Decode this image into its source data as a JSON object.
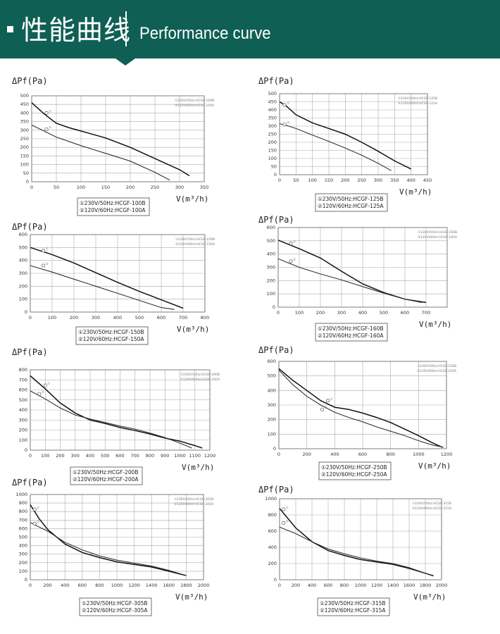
{
  "header": {
    "title_cn": "性能曲线",
    "title_en": "Performance curve"
  },
  "colors": {
    "banner": "#0f5f55",
    "curve": "#111111",
    "grid": "#999999"
  },
  "chart_data": [
    {
      "type": "line",
      "ylabel": "ΔPf(Pa)",
      "xlabel": "V(m³/h)",
      "ylim": [
        0,
        500
      ],
      "xlim": [
        0,
        350
      ],
      "yticks": [
        0,
        50,
        100,
        150,
        200,
        250,
        300,
        350,
        400,
        450,
        500
      ],
      "xticks": [
        0,
        50,
        100,
        150,
        200,
        250,
        300,
        350
      ],
      "grid": true,
      "series": [
        {
          "name": "①230V/50Hz:HCGF-100B",
          "x": [
            0,
            25,
            50,
            75,
            100,
            150,
            200,
            250,
            300,
            320
          ],
          "y": [
            460,
            395,
            340,
            315,
            295,
            255,
            200,
            135,
            70,
            35
          ]
        },
        {
          "name": "②120V/60Hz:HCGF-100A",
          "x": [
            0,
            25,
            50,
            75,
            100,
            150,
            200,
            250,
            280
          ],
          "y": [
            330,
            295,
            260,
            235,
            210,
            165,
            120,
            55,
            10
          ]
        }
      ],
      "markers": [
        {
          "label": "①",
          "x": 30,
          "y": 400
        },
        {
          "label": "②",
          "x": 30,
          "y": 305
        }
      ]
    },
    {
      "type": "line",
      "ylabel": "ΔPf(Pa)",
      "xlabel": "V(m³/h)",
      "ylim": [
        0,
        500
      ],
      "xlim": [
        0,
        450
      ],
      "yticks": [
        0,
        50,
        100,
        150,
        200,
        250,
        300,
        350,
        400,
        450,
        500
      ],
      "xticks": [
        0,
        50,
        100,
        150,
        200,
        250,
        300,
        350,
        400,
        450
      ],
      "grid": true,
      "series": [
        {
          "name": "①230V/50Hz:HCGF-125B",
          "x": [
            0,
            20,
            50,
            100,
            150,
            200,
            250,
            300,
            350,
            400
          ],
          "y": [
            450,
            425,
            370,
            320,
            285,
            250,
            200,
            145,
            85,
            35
          ]
        },
        {
          "name": "②120V/60Hz:HCGF-125A",
          "x": [
            0,
            20,
            50,
            100,
            150,
            200,
            250,
            300,
            340
          ],
          "y": [
            315,
            305,
            285,
            245,
            205,
            165,
            120,
            70,
            25
          ]
        }
      ],
      "markers": [
        {
          "label": "①",
          "x": 15,
          "y": 430
        },
        {
          "label": "②",
          "x": 15,
          "y": 310
        }
      ]
    },
    {
      "type": "line",
      "ylabel": "ΔPf(Pa)",
      "xlabel": "V(m³/h)",
      "ylim": [
        0,
        600
      ],
      "xlim": [
        0,
        800
      ],
      "yticks": [
        0,
        100,
        200,
        300,
        400,
        500,
        600
      ],
      "xticks": [
        0,
        100,
        200,
        300,
        400,
        500,
        600,
        700,
        800
      ],
      "grid": true,
      "series": [
        {
          "name": "①230V/50Hz:HCGF-150B",
          "x": [
            0,
            100,
            200,
            300,
            400,
            500,
            600,
            700
          ],
          "y": [
            500,
            445,
            380,
            305,
            230,
            160,
            95,
            30
          ]
        },
        {
          "name": "②120V/60Hz:HCGF-150A",
          "x": [
            0,
            100,
            200,
            300,
            400,
            500,
            600,
            660
          ],
          "y": [
            360,
            310,
            255,
            200,
            145,
            90,
            35,
            20
          ]
        }
      ],
      "markers": [
        {
          "label": "①",
          "x": 60,
          "y": 475
        },
        {
          "label": "②",
          "x": 60,
          "y": 360
        }
      ]
    },
    {
      "type": "line",
      "ylabel": "ΔPf(Pa)",
      "xlabel": "V(m³/h)",
      "ylim": [
        0,
        600
      ],
      "xlim": [
        0,
        800
      ],
      "yticks": [
        0,
        100,
        200,
        300,
        400,
        500,
        600
      ],
      "xticks": [
        0,
        100,
        200,
        300,
        400,
        500,
        600,
        700
      ],
      "grid": true,
      "series": [
        {
          "name": "①230V/50Hz:HCGF-160B",
          "x": [
            0,
            100,
            200,
            300,
            400,
            500,
            600,
            700
          ],
          "y": [
            505,
            440,
            370,
            270,
            175,
            110,
            60,
            35
          ]
        },
        {
          "name": "②120V/60Hz:HCGF-160A",
          "x": [
            0,
            100,
            200,
            300,
            400,
            500,
            600,
            680
          ],
          "y": [
            365,
            300,
            250,
            205,
            155,
            105,
            60,
            35
          ]
        }
      ],
      "markers": [
        {
          "label": "①",
          "x": 60,
          "y": 480
        },
        {
          "label": "②",
          "x": 60,
          "y": 345
        }
      ]
    },
    {
      "type": "line",
      "ylabel": "ΔPf(Pa)",
      "xlabel": "V(m³/h)",
      "ylim": [
        0,
        800
      ],
      "xlim": [
        0,
        1200
      ],
      "yticks": [
        0,
        100,
        200,
        300,
        400,
        500,
        600,
        700,
        800
      ],
      "xticks": [
        0,
        100,
        200,
        300,
        400,
        500,
        600,
        700,
        800,
        900,
        1000,
        1100,
        1200
      ],
      "grid": true,
      "series": [
        {
          "name": "①230V/50Hz:HCGF-200B",
          "x": [
            0,
            100,
            200,
            300,
            400,
            500,
            600,
            700,
            800,
            900,
            1000,
            1100,
            1150
          ],
          "y": [
            740,
            610,
            470,
            370,
            300,
            265,
            225,
            195,
            160,
            120,
            90,
            45,
            20
          ]
        },
        {
          "name": "②120V/60Hz:HCGF-200A",
          "x": [
            0,
            100,
            200,
            300,
            400,
            500,
            600,
            700,
            800,
            900,
            1000,
            1080
          ],
          "y": [
            590,
            510,
            420,
            350,
            310,
            275,
            240,
            210,
            170,
            125,
            70,
            20
          ]
        }
      ],
      "markers": [
        {
          "label": "①",
          "x": 100,
          "y": 645
        },
        {
          "label": "②",
          "x": 60,
          "y": 560
        }
      ]
    },
    {
      "type": "line",
      "ylabel": "ΔPf(Pa)",
      "xlabel": "V(m³/h)",
      "ylim": [
        0,
        600
      ],
      "xlim": [
        0,
        1200
      ],
      "yticks": [
        0,
        100,
        200,
        300,
        400,
        500,
        600
      ],
      "xticks": [
        0,
        200,
        400,
        600,
        800,
        1000,
        1200
      ],
      "grid": true,
      "series": [
        {
          "name": "①230V/50Hz:HCGF-250B",
          "x": [
            0,
            100,
            200,
            300,
            400,
            500,
            600,
            700,
            800,
            900,
            1000,
            1100,
            1170
          ],
          "y": [
            550,
            470,
            400,
            330,
            285,
            270,
            245,
            215,
            180,
            135,
            90,
            40,
            10
          ]
        },
        {
          "name": "②120V/60Hz:HCGF-250A",
          "x": [
            0,
            100,
            200,
            300,
            400,
            500,
            600,
            700,
            800,
            900,
            1000,
            1100,
            1180
          ],
          "y": [
            540,
            440,
            360,
            300,
            250,
            215,
            185,
            150,
            120,
            90,
            55,
            25,
            10
          ]
        }
      ],
      "markers": [
        {
          "label": "①",
          "x": 350,
          "y": 330
        },
        {
          "label": "②",
          "x": 310,
          "y": 270
        }
      ]
    },
    {
      "type": "line",
      "ylabel": "ΔPf(Pa)",
      "xlabel": "V(m³/h)",
      "ylim": [
        0,
        1000
      ],
      "xlim": [
        0,
        2000
      ],
      "yticks": [
        0,
        100,
        200,
        300,
        400,
        500,
        600,
        700,
        800,
        900,
        1000
      ],
      "xticks": [
        0,
        200,
        400,
        600,
        800,
        1000,
        1200,
        1400,
        1600,
        1800,
        2000
      ],
      "grid": true,
      "series": [
        {
          "name": "①230V/50Hz:HCGF-305B",
          "x": [
            0,
            100,
            200,
            400,
            600,
            800,
            1000,
            1200,
            1400,
            1600,
            1800
          ],
          "y": [
            880,
            720,
            590,
            420,
            320,
            260,
            210,
            180,
            150,
            100,
            50
          ]
        },
        {
          "name": "②120V/60Hz:HCGF-305A",
          "x": [
            0,
            100,
            200,
            400,
            600,
            800,
            1000,
            1200,
            1400,
            1600,
            1800
          ],
          "y": [
            670,
            620,
            570,
            440,
            350,
            280,
            230,
            195,
            160,
            110,
            50
          ]
        }
      ],
      "markers": [
        {
          "label": "①",
          "x": 50,
          "y": 825
        },
        {
          "label": "②",
          "x": 50,
          "y": 660
        }
      ]
    },
    {
      "type": "line",
      "ylabel": "ΔPf(Pa)",
      "xlabel": "V(m³/h)",
      "ylim": [
        0,
        1000
      ],
      "xlim": [
        0,
        2000
      ],
      "yticks": [
        0,
        200,
        400,
        600,
        800,
        1000
      ],
      "xticks": [
        0,
        200,
        400,
        600,
        800,
        1000,
        1200,
        1400,
        1600,
        1800,
        2000
      ],
      "grid": true,
      "series": [
        {
          "name": "①230V/50Hz:HCGF-315B",
          "x": [
            0,
            100,
            200,
            400,
            600,
            800,
            1000,
            1200,
            1400,
            1600,
            1800,
            1900
          ],
          "y": [
            880,
            760,
            640,
            470,
            360,
            300,
            250,
            220,
            190,
            140,
            80,
            50
          ]
        },
        {
          "name": "②120V/60Hz:HCGF-315A",
          "x": [
            0,
            100,
            200,
            400,
            600,
            800,
            1000,
            1200,
            1400,
            1600,
            1800,
            1900
          ],
          "y": [
            650,
            610,
            570,
            470,
            380,
            320,
            270,
            230,
            200,
            150,
            80,
            45
          ]
        }
      ],
      "markers": [
        {
          "label": "①",
          "x": 50,
          "y": 870
        },
        {
          "label": "②",
          "x": 50,
          "y": 700
        }
      ]
    }
  ]
}
